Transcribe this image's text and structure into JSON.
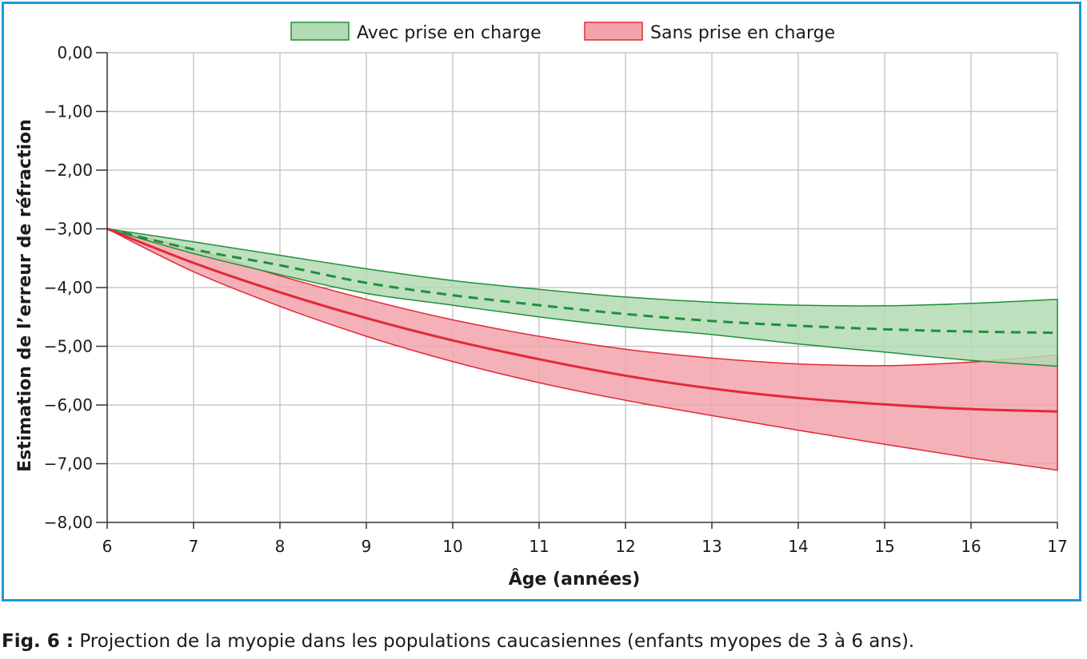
{
  "chart_data": {
    "type": "area",
    "title": "",
    "xlabel": "Âge (années)",
    "ylabel": "Estimation de l’erreur de réfraction",
    "xlim": [
      6,
      17
    ],
    "ylim": [
      -8,
      0
    ],
    "x_ticks": [
      "6",
      "7",
      "8",
      "9",
      "10",
      "11",
      "12",
      "13",
      "14",
      "15",
      "16",
      "17"
    ],
    "y_ticks": [
      "0,00",
      "−1,00",
      "−2,00",
      "−3,00",
      "−4,00",
      "−5,00",
      "−6,00",
      "−7,00",
      "−8,00"
    ],
    "grid": true,
    "legend_position": "top-center",
    "x": [
      6,
      7,
      8,
      9,
      10,
      11,
      12,
      13,
      14,
      15,
      16,
      17
    ],
    "series": [
      {
        "name": "Avec prise en charge",
        "color": "#1f8f3a",
        "fill": "#b3dbb3",
        "line_style": "dashed",
        "mean": [
          -3.0,
          -3.35,
          -3.62,
          -3.92,
          -4.13,
          -4.3,
          -4.45,
          -4.57,
          -4.65,
          -4.71,
          -4.75,
          -4.77
        ],
        "upper": [
          -3.0,
          -3.22,
          -3.45,
          -3.68,
          -3.88,
          -4.03,
          -4.16,
          -4.25,
          -4.3,
          -4.31,
          -4.27,
          -4.2
        ],
        "lower": [
          -3.0,
          -3.42,
          -3.78,
          -4.1,
          -4.3,
          -4.5,
          -4.67,
          -4.8,
          -4.96,
          -5.1,
          -5.24,
          -5.34
        ]
      },
      {
        "name": "Sans prise en charge",
        "color": "#e02a36",
        "fill": "#f3a3ab",
        "line_style": "solid",
        "mean": [
          -3.0,
          -3.58,
          -4.08,
          -4.52,
          -4.9,
          -5.22,
          -5.5,
          -5.72,
          -5.88,
          -5.99,
          -6.07,
          -6.11
        ],
        "upper": [
          -3.0,
          -3.35,
          -3.8,
          -4.2,
          -4.55,
          -4.83,
          -5.05,
          -5.2,
          -5.3,
          -5.33,
          -5.27,
          -5.15
        ],
        "lower": [
          -3.0,
          -3.73,
          -4.32,
          -4.83,
          -5.26,
          -5.62,
          -5.92,
          -6.18,
          -6.43,
          -6.67,
          -6.9,
          -7.11
        ]
      }
    ]
  },
  "caption": {
    "label": "Fig. 6 :",
    "text": " Projection de la myopie dans les populations caucasiennes (enfants myopes de 3 à 6 ans)."
  }
}
